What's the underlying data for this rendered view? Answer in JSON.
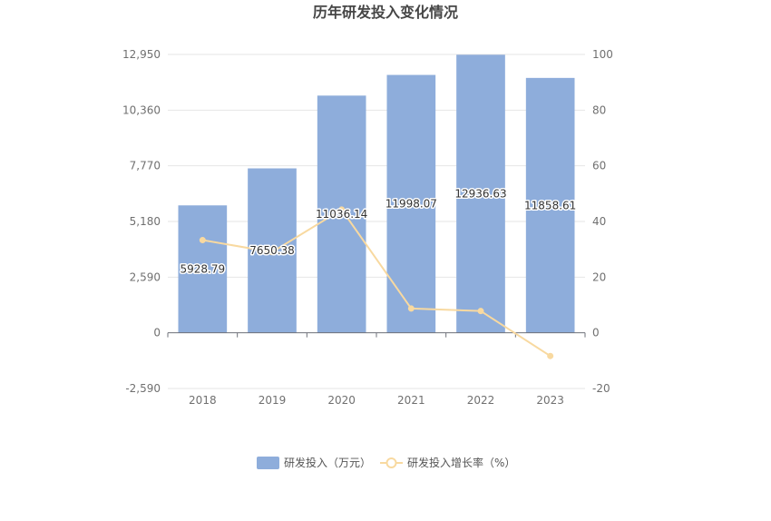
{
  "chart_data": {
    "type": "bar",
    "title": "历年研发投入变化情况",
    "categories": [
      "2018",
      "2019",
      "2020",
      "2021",
      "2022",
      "2023"
    ],
    "series": [
      {
        "name": "研发投入（万元）",
        "type": "bar",
        "axis": "left",
        "color": "#8eaddb",
        "values": [
          5928.79,
          7650.38,
          11036.14,
          11998.07,
          12936.63,
          11858.61
        ],
        "labels": [
          "5928.79",
          "7650.38",
          "11036.14",
          "11998.07",
          "12936.63",
          "11858.61"
        ]
      },
      {
        "name": "研发投入增长率（%）",
        "type": "line",
        "axis": "right",
        "color": "#f8d9a0",
        "values": [
          33.3,
          29.0,
          44.26,
          8.72,
          7.82,
          -8.33
        ]
      }
    ],
    "y_left": {
      "ylim": [
        -2590,
        12950
      ],
      "ticks": [
        -2590,
        0,
        2590,
        5180,
        7770,
        10360,
        12950
      ],
      "tick_labels": [
        "-2,590",
        "0",
        "2,590",
        "5,180",
        "7,770",
        "10,360",
        "12,950"
      ]
    },
    "y_right": {
      "ylim": [
        -20,
        100
      ],
      "ticks": [
        -20,
        0,
        20,
        40,
        60,
        80,
        100
      ],
      "tick_labels": [
        "-20",
        "0",
        "20",
        "40",
        "60",
        "80",
        "100"
      ]
    },
    "grid": true,
    "legend_position": "bottom-center"
  }
}
